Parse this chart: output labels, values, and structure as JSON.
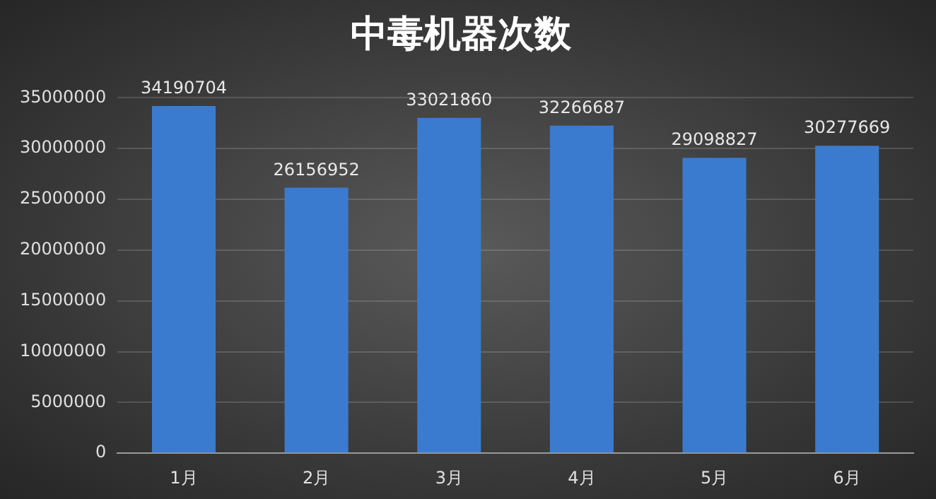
{
  "chart_data": {
    "type": "bar",
    "title": "中毒机器次数",
    "categories": [
      "1月",
      "2月",
      "3月",
      "4月",
      "5月",
      "6月"
    ],
    "values": [
      34190704,
      26156952,
      33021860,
      32266687,
      29098827,
      30277669
    ],
    "color": "#3a7bd0",
    "ylim": [
      0,
      35000000
    ],
    "yticks": [
      0,
      5000000,
      10000000,
      15000000,
      20000000,
      25000000,
      30000000,
      35000000
    ],
    "grid": "y",
    "data_labels": true
  }
}
